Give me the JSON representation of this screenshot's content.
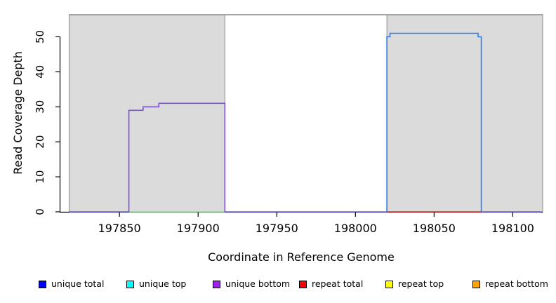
{
  "chart_data": {
    "type": "line",
    "title": "",
    "xlabel": "Coordinate in Reference Genome",
    "ylabel": "Read Coverage Depth",
    "x_ticks": [
      "197850",
      "197900",
      "197950",
      "198000",
      "198050",
      "198100"
    ],
    "y_ticks": [
      "0",
      "10",
      "20",
      "30",
      "40",
      "50"
    ],
    "xlim": [
      197812,
      198119
    ],
    "ylim": [
      0,
      56.5
    ],
    "grid": "off",
    "background_regions": [
      {
        "name": "shaded-region-left",
        "x0": 197818,
        "x1": 197917,
        "fill": "#dbdbdb",
        "border": "#8b8b8b"
      },
      {
        "name": "shaded-region-right",
        "x0": 198020,
        "x1": 198119,
        "fill": "#dbdbdb",
        "border": "#8b8b8b"
      }
    ],
    "top_boundary": {
      "value": 56.3,
      "x0": 197818,
      "x1": 198119,
      "color": "#8b8b8b"
    },
    "series": [
      {
        "name": "unique top at zero",
        "color": "#8fdc8f",
        "points": [
          [
            197856,
            0
          ],
          [
            197917,
            0
          ]
        ]
      },
      {
        "name": "repeat total at zero",
        "color": "#e32b2b",
        "points": [
          [
            198020,
            0
          ],
          [
            198080,
            0
          ]
        ]
      },
      {
        "name": "baseline left",
        "color": "#6a5ae8",
        "points": [
          [
            197818,
            0
          ],
          [
            197856,
            0
          ]
        ]
      },
      {
        "name": "baseline middle",
        "color": "#6a5ae8",
        "points": [
          [
            197917,
            0
          ],
          [
            198020,
            0
          ]
        ]
      },
      {
        "name": "baseline right",
        "color": "#6a5ae8",
        "points": [
          [
            198080,
            0
          ],
          [
            198118,
            0
          ]
        ]
      },
      {
        "name": "unique bottom coverage",
        "color": "#7c4fe4",
        "points": [
          [
            197856,
            0
          ],
          [
            197856,
            29
          ],
          [
            197865,
            29
          ],
          [
            197865,
            30
          ],
          [
            197875,
            30
          ],
          [
            197875,
            31
          ],
          [
            197917,
            31
          ],
          [
            197917,
            0
          ]
        ]
      },
      {
        "name": "unique top coverage",
        "color": "#2e7ef0",
        "points": [
          [
            198020,
            0
          ],
          [
            198020,
            50
          ],
          [
            198022,
            50
          ],
          [
            198022,
            51
          ],
          [
            198078,
            51
          ],
          [
            198078,
            50
          ],
          [
            198080,
            50
          ],
          [
            198080,
            0
          ]
        ]
      }
    ],
    "annotations": {
      "left_plateau_depths": [
        29,
        30,
        31
      ],
      "right_plateau_depths": [
        50,
        51
      ]
    }
  },
  "axes": {
    "x_title": "Coordinate in Reference Genome",
    "y_title": "Read Coverage Depth"
  },
  "legend": {
    "position": "bottom",
    "items": [
      {
        "label": "unique total",
        "color": "#0000ff"
      },
      {
        "label": "unique top",
        "color": "#00ffff"
      },
      {
        "label": "unique bottom",
        "color": "#a020f0"
      },
      {
        "label": "repeat total",
        "color": "#ff0000"
      },
      {
        "label": "repeat top",
        "color": "#ffff00"
      },
      {
        "label": "repeat bottom",
        "color": "#ffa500"
      }
    ]
  }
}
